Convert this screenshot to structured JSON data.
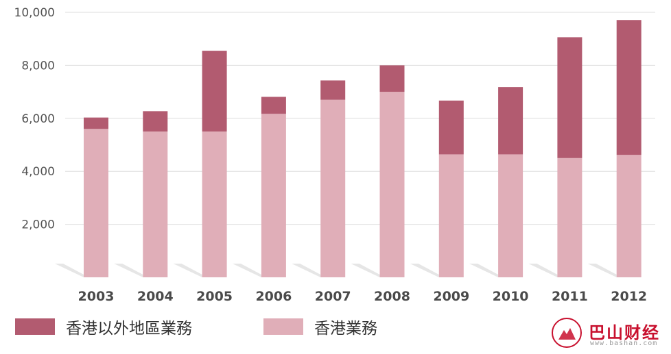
{
  "chart_data": {
    "type": "bar",
    "stacked": true,
    "categories": [
      "2003",
      "2004",
      "2005",
      "2006",
      "2007",
      "2008",
      "2009",
      "2010",
      "2011",
      "2012"
    ],
    "series": [
      {
        "name": "香港業務",
        "color": "#e0aeb8",
        "values": [
          5600,
          5500,
          5500,
          6170,
          6700,
          7000,
          4640,
          4640,
          4500,
          4620
        ]
      },
      {
        "name": "香港以外地區業務",
        "color": "#b25b70",
        "values": [
          430,
          770,
          3050,
          640,
          730,
          1000,
          2030,
          2540,
          4560,
          5090
        ]
      }
    ],
    "ylim": [
      0,
      10000
    ],
    "yticks": [
      "2,000",
      "4,000",
      "6,000",
      "8,000",
      "10,000"
    ],
    "ytick_values": [
      2000,
      4000,
      6000,
      8000,
      10000
    ],
    "grid": true,
    "legend": "bottom-left",
    "title": "",
    "xlabel": "",
    "ylabel": ""
  },
  "legend": {
    "items": [
      {
        "label": "香港以外地區業務",
        "color": "#b25b70"
      },
      {
        "label": "香港業務",
        "color": "#e0aeb8"
      }
    ]
  },
  "watermark": {
    "title": "巴山财经",
    "url": "www.bashan.com"
  }
}
